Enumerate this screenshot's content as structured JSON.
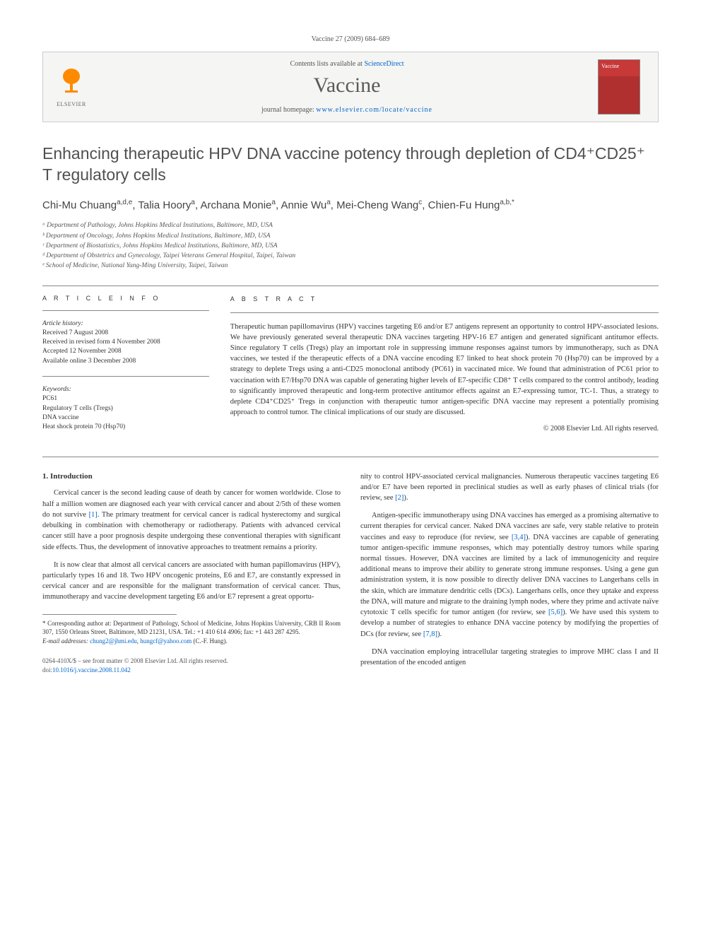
{
  "header": {
    "citation": "Vaccine 27 (2009) 684–689"
  },
  "banner": {
    "contents_prefix": "Contents lists available at ",
    "contents_link": "ScienceDirect",
    "journal": "Vaccine",
    "homepage_prefix": "journal homepage: ",
    "homepage_link": "www.elsevier.com/locate/vaccine",
    "publisher_name": "ELSEVIER"
  },
  "title": "Enhancing therapeutic HPV DNA vaccine potency through depletion of CD4⁺CD25⁺ T regulatory cells",
  "authors_html": "Chi-Mu Chuang<sup>a,d,e</sup>, Talia Hoory<sup>a</sup>, Archana Monie<sup>a</sup>, Annie Wu<sup>a</sup>, Mei-Cheng Wang<sup>c</sup>, Chien-Fu Hung<sup>a,b,*</sup>",
  "affiliations": [
    "ᵃ Department of Pathology, Johns Hopkins Medical Institutions, Baltimore, MD, USA",
    "ᵇ Department of Oncology, Johns Hopkins Medical Institutions, Baltimore, MD, USA",
    "ᶜ Department of Biostatistics, Johns Hopkins Medical Institutions, Baltimore, MD, USA",
    "ᵈ Department of Obstetrics and Gynecology, Taipei Veterans General Hospital, Taipei, Taiwan",
    "ᵉ School of Medicine, National Yang-Ming University, Taipei, Taiwan"
  ],
  "article_info": {
    "label": "A R T I C L E   I N F O",
    "history_title": "Article history:",
    "history": [
      "Received 7 August 2008",
      "Received in revised form 4 November 2008",
      "Accepted 12 November 2008",
      "Available online 3 December 2008"
    ],
    "keywords_title": "Keywords:",
    "keywords": [
      "PC61",
      "Regulatory T cells (Tregs)",
      "DNA vaccine",
      "Heat shock protein 70 (Hsp70)"
    ]
  },
  "abstract": {
    "label": "A B S T R A C T",
    "text": "Therapeutic human papillomavirus (HPV) vaccines targeting E6 and/or E7 antigens represent an opportunity to control HPV-associated lesions. We have previously generated several therapeutic DNA vaccines targeting HPV-16 E7 antigen and generated significant antitumor effects. Since regulatory T cells (Tregs) play an important role in suppressing immune responses against tumors by immunotherapy, such as DNA vaccines, we tested if the therapeutic effects of a DNA vaccine encoding E7 linked to heat shock protein 70 (Hsp70) can be improved by a strategy to deplete Tregs using a anti-CD25 monoclonal antibody (PC61) in vaccinated mice. We found that administration of PC61 prior to vaccination with E7/Hsp70 DNA was capable of generating higher levels of E7-specific CD8⁺ T cells compared to the control antibody, leading to significantly improved therapeutic and long-term protective antitumor effects against an E7-expressing tumor, TC-1. Thus, a strategy to deplete CD4⁺CD25⁺ Tregs in conjunction with therapeutic tumor antigen-specific DNA vaccine may represent a potentially promising approach to control tumor. The clinical implications of our study are discussed.",
    "copyright": "© 2008 Elsevier Ltd. All rights reserved."
  },
  "body": {
    "section1_heading": "1.  Introduction",
    "left_paragraphs": [
      "Cervical cancer is the second leading cause of death by cancer for women worldwide. Close to half a million women are diagnosed each year with cervical cancer and about 2/5th of these women do not survive [1]. The primary treatment for cervical cancer is radical hysterectomy and surgical debulking in combination with chemotherapy or radiotherapy. Patients with advanced cervical cancer still have a poor prognosis despite undergoing these conventional therapies with significant side effects. Thus, the development of innovative approaches to treatment remains a priority.",
      "It is now clear that almost all cervical cancers are associated with human papillomavirus (HPV), particularly types 16 and 18. Two HPV oncogenic proteins, E6 and E7, are constantly expressed in cervical cancer and are responsible for the malignant transformation of cervical cancer. Thus, immunotherapy and vaccine development targeting E6 and/or E7 represent a great opportu-"
    ],
    "right_paragraphs": [
      "nity to control HPV-associated cervical malignancies. Numerous therapeutic vaccines targeting E6 and/or E7 have been reported in preclinical studies as well as early phases of clinical trials (for review, see [2]).",
      "Antigen-specific immunotherapy using DNA vaccines has emerged as a promising alternative to current therapies for cervical cancer. Naked DNA vaccines are safe, very stable relative to protein vaccines and easy to reproduce (for review, see [3,4]). DNA vaccines are capable of generating tumor antigen-specific immune responses, which may potentially destroy tumors while sparing normal tissues. However, DNA vaccines are limited by a lack of immunogenicity and require additional means to improve their ability to generate strong immune responses. Using a gene gun administration system, it is now possible to directly deliver DNA vaccines to Langerhans cells in the skin, which are immature dendritic cells (DCs). Langerhans cells, once they uptake and express the DNA, will mature and migrate to the draining lymph nodes, where they prime and activate naïve cytotoxic T cells specific for tumor antigen (for review, see [5,6]). We have used this system to develop a number of strategies to enhance DNA vaccine potency by modifying the properties of DCs (for review, see [7,8]).",
      "DNA vaccination employing intracellular targeting strategies to improve MHC class I and II presentation of the encoded antigen"
    ]
  },
  "footnote": {
    "corresponding": "* Corresponding author at: Department of Pathology, School of Medicine, Johns Hopkins University, CRB II Room 307, 1550 Orleans Street, Baltimore, MD 21231, USA. Tel.: +1 410 614 4906; fax: +1 443 287 4295.",
    "email_label": "E-mail addresses: ",
    "email1": "chung2@jhmi.edu",
    "email_sep": ", ",
    "email2": "hungcf@yahoo.com",
    "email_suffix": " (C.-F. Hung)."
  },
  "footer": {
    "issn_line": "0264-410X/$ – see front matter © 2008 Elsevier Ltd. All rights reserved.",
    "doi_prefix": "doi:",
    "doi": "10.1016/j.vaccine.2008.11.042"
  },
  "ref_links": [
    "[1]",
    "[2]",
    "[3,4]",
    "[5,6]",
    "[7,8]"
  ]
}
